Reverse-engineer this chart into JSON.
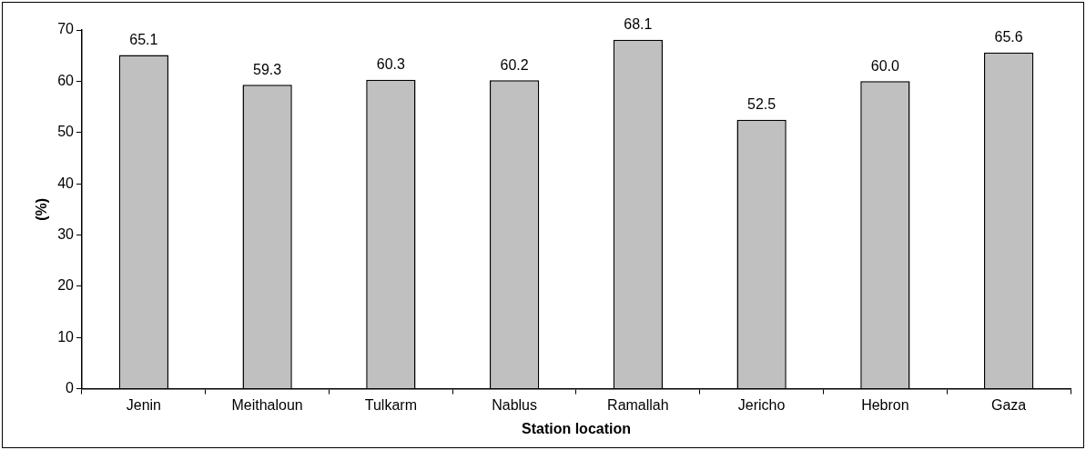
{
  "chart_data": {
    "type": "bar",
    "xlabel": "Station location",
    "ylabel": "(%)",
    "categories": [
      "Jenin",
      "Meithaloun",
      "Tulkarm",
      "Nablus",
      "Ramallah",
      "Jericho",
      "Hebron",
      "Gaza"
    ],
    "values": [
      65.1,
      59.3,
      60.3,
      60.2,
      68.1,
      52.5,
      60.0,
      65.6
    ],
    "value_labels": [
      "65.1",
      "59.3",
      "60.3",
      "60.2",
      "68.1",
      "52.5",
      "60.0",
      "65.6"
    ],
    "color": "#c0c0c0",
    "ylim": [
      0,
      70
    ],
    "yticks": [
      0,
      10,
      20,
      30,
      40,
      50,
      60,
      70
    ],
    "grid": false,
    "legend": false
  }
}
